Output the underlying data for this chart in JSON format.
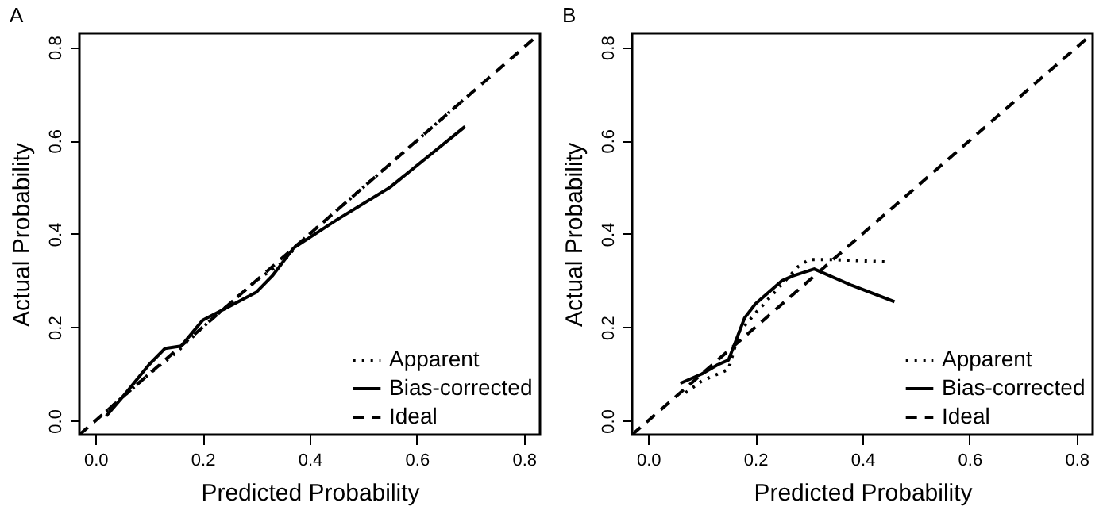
{
  "chart_data": [
    {
      "type": "line",
      "title": "A",
      "xlabel": "Predicted Probability",
      "ylabel": "Actual Probability",
      "xlim": [
        -0.03,
        0.83
      ],
      "ylim": [
        -0.03,
        0.83
      ],
      "xticks": [
        {
          "value": 0,
          "label": "0.0"
        },
        0.2,
        0.4,
        0.6,
        0.8
      ],
      "yticks": [
        {
          "value": 0,
          "label": "0.0"
        },
        0.2,
        0.4,
        0.6,
        0.8
      ],
      "legend": "bottom right",
      "series": [
        {
          "name": "Apparent",
          "color": "#000000",
          "line_style": "dotted",
          "x": [
            0.02,
            0.05,
            0.1,
            0.15,
            0.2,
            0.25,
            0.3,
            0.35,
            0.38,
            0.5,
            0.69
          ],
          "values": [
            0.02,
            0.05,
            0.1,
            0.145,
            0.2,
            0.25,
            0.3,
            0.34,
            0.38,
            0.5,
            0.69
          ]
        },
        {
          "name": "Bias-corrected",
          "color": "#000000",
          "line_style": "solid",
          "x": [
            0.02,
            0.05,
            0.1,
            0.13,
            0.16,
            0.2,
            0.25,
            0.3,
            0.33,
            0.37,
            0.45,
            0.55,
            0.69
          ],
          "values": [
            0.01,
            0.05,
            0.12,
            0.155,
            0.16,
            0.215,
            0.245,
            0.275,
            0.31,
            0.37,
            0.43,
            0.5,
            0.63
          ]
        },
        {
          "name": "Ideal",
          "color": "#000000",
          "line_style": "dashed",
          "x": [
            -0.03,
            0.83
          ],
          "values": [
            -0.03,
            0.83
          ]
        }
      ]
    },
    {
      "type": "line",
      "title": "B",
      "xlabel": "Predicted Probability",
      "ylabel": "Actual Probability",
      "xlim": [
        -0.03,
        0.83
      ],
      "ylim": [
        -0.03,
        0.83
      ],
      "xticks": [
        {
          "value": 0,
          "label": "0.0"
        },
        0.2,
        0.4,
        0.6,
        0.8
      ],
      "yticks": [
        {
          "value": 0,
          "label": "0.0"
        },
        0.2,
        0.4,
        0.6,
        0.8
      ],
      "legend": "bottom right",
      "series": [
        {
          "name": "Apparent",
          "color": "#000000",
          "line_style": "dotted",
          "x": [
            0.07,
            0.1,
            0.15,
            0.17,
            0.2,
            0.24,
            0.28,
            0.3,
            0.35,
            0.45
          ],
          "values": [
            0.06,
            0.085,
            0.11,
            0.19,
            0.23,
            0.28,
            0.33,
            0.345,
            0.345,
            0.34
          ]
        },
        {
          "name": "Bias-corrected",
          "color": "#000000",
          "line_style": "solid",
          "x": [
            0.06,
            0.1,
            0.13,
            0.15,
            0.18,
            0.2,
            0.25,
            0.27,
            0.31,
            0.38,
            0.46
          ],
          "values": [
            0.08,
            0.1,
            0.12,
            0.13,
            0.22,
            0.25,
            0.3,
            0.31,
            0.325,
            0.29,
            0.255
          ]
        },
        {
          "name": "Ideal",
          "color": "#000000",
          "line_style": "dashed",
          "x": [
            -0.03,
            0.83
          ],
          "values": [
            -0.03,
            0.83
          ]
        }
      ]
    }
  ]
}
